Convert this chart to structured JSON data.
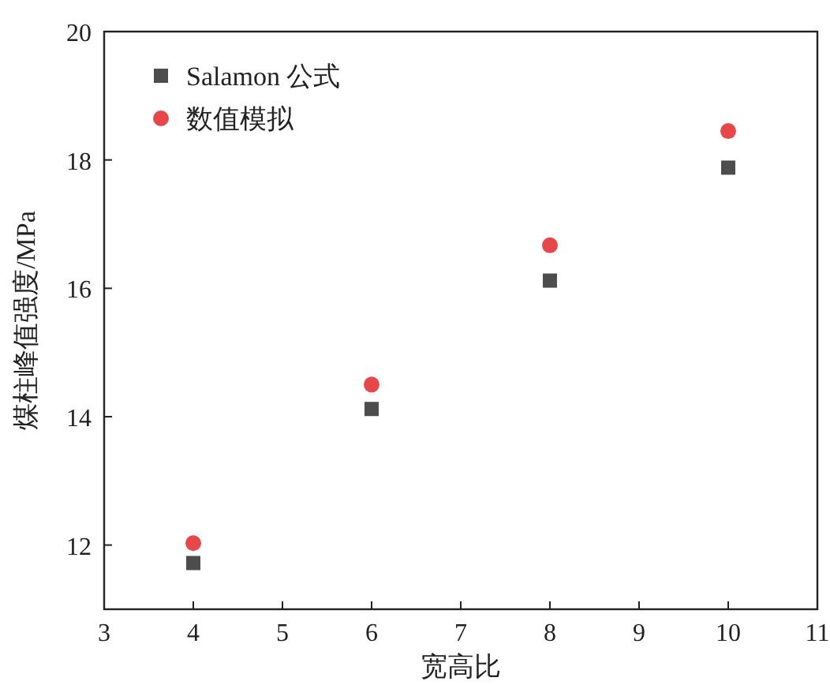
{
  "chart_data": {
    "type": "scatter",
    "xlabel": "宽高比",
    "ylabel": "煤柱峰值强度/MPa",
    "x": [
      4,
      6,
      8,
      10
    ],
    "series": [
      {
        "name": "Salamon 公式",
        "color": "#4d4d4d",
        "marker": "square",
        "values": [
          11.72,
          14.12,
          16.12,
          17.88
        ]
      },
      {
        "name": "数值模拟",
        "color": "#e8474a",
        "marker": "circle",
        "values": [
          12.03,
          14.5,
          16.67,
          18.45
        ]
      }
    ],
    "xlim": [
      3,
      11
    ],
    "xticks": [
      3,
      4,
      5,
      6,
      7,
      8,
      9,
      10,
      11
    ],
    "ylim": [
      11,
      20
    ],
    "yticks": [
      12,
      14,
      16,
      18,
      20
    ],
    "legend": "top left",
    "grid": false
  }
}
